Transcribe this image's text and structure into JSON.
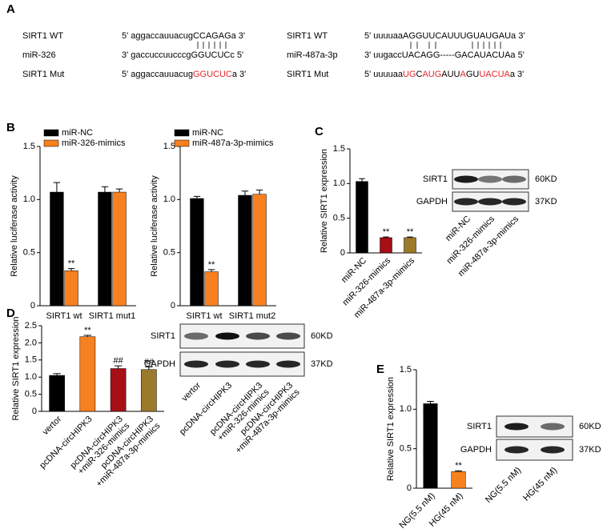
{
  "panels": [
    "A",
    "B",
    "C",
    "D",
    "E"
  ],
  "sequences": {
    "left": [
      {
        "label": "SIRT1 WT",
        "segments": [
          {
            "text": "5' aggaccauuacugCCAGAGa 3'"
          }
        ]
      },
      {
        "label": "miR-326",
        "segments": [
          {
            "text": "3' gaccuccuucccgGGUCUCc 5'"
          }
        ]
      },
      {
        "label": "SIRT1 Mut",
        "segments": [
          {
            "text": "5' aggaccauuacug"
          },
          {
            "text": "GGUCUC",
            "color": "#e8262a"
          },
          {
            "text": "a 3'"
          }
        ]
      }
    ],
    "right": [
      {
        "label": "SIRT1 WT",
        "segments": [
          {
            "text": "5' uuuuaaAGGUUCAUUUGUAUGAUa 3'"
          }
        ]
      },
      {
        "label": "miR-487a-3p",
        "segments": [
          {
            "text": "3' uugaccUACAGG-----GACAUACUAa 5'"
          }
        ]
      },
      {
        "label": "SIRT1 Mut",
        "segments": [
          {
            "text": "5' uuuuaa"
          },
          {
            "text": "UG",
            "color": "#e8262a"
          },
          {
            "text": "C"
          },
          {
            "text": "AUG",
            "color": "#e8262a"
          },
          {
            "text": "AUU"
          },
          {
            "text": "A",
            "color": "#e8262a"
          },
          {
            "text": "GU"
          },
          {
            "text": "UACUA",
            "color": "#e8262a"
          },
          {
            "text": "a 3'"
          }
        ]
      }
    ]
  },
  "chart_data": [
    {
      "type": "bar",
      "ylabel": "Relative luciferase activity",
      "categories": [
        "SIRT1 wt",
        "SIRT1 mut1"
      ],
      "series": [
        {
          "name": "miR-NC",
          "color": "#000000",
          "values": [
            1.07,
            1.07
          ],
          "errors": [
            0.09,
            0.05
          ],
          "significance": [
            null,
            null
          ]
        },
        {
          "name": "miR-326-mimics",
          "color": "#f7801f",
          "values": [
            0.33,
            1.07
          ],
          "errors": [
            0.02,
            0.03
          ],
          "significance": [
            "**",
            null
          ]
        }
      ],
      "ylim": [
        0,
        1.5
      ],
      "yticks": [
        0,
        0.5,
        {
          "value": 1.0,
          "label": "1.0"
        },
        1.5
      ]
    },
    {
      "type": "bar",
      "ylabel": "Relative luciferase activity",
      "categories": [
        "SIRT1 wt",
        "SIRT1 mut2"
      ],
      "series": [
        {
          "name": "miR-NC",
          "color": "#000000",
          "values": [
            1.01,
            1.04
          ],
          "errors": [
            0.02,
            0.04
          ],
          "significance": [
            null,
            null
          ]
        },
        {
          "name": "miR-487a-3p-mimics",
          "color": "#f7801f",
          "values": [
            0.32,
            1.05
          ],
          "errors": [
            0.02,
            0.04
          ],
          "significance": [
            "**",
            null
          ]
        }
      ],
      "ylim": [
        0,
        1.5
      ],
      "yticks": [
        0,
        0.5,
        {
          "value": 1.0,
          "label": "1.0"
        },
        1.5
      ]
    },
    {
      "type": "bar",
      "ylabel": "Relative SIRT1 expression",
      "categories": [
        [
          "miR-NC"
        ],
        [
          "miR-326-mimics"
        ],
        [
          "miR-487a-3p-mimics"
        ]
      ],
      "values": [
        1.03,
        0.22,
        0.22
      ],
      "errors": [
        0.04,
        0.01,
        0.01
      ],
      "significance": [
        null,
        "**",
        "**"
      ],
      "colors": [
        "#000000",
        "#a50f15",
        "#9c7a2c"
      ],
      "ylim": [
        0,
        1.5
      ],
      "yticks": [
        0,
        0.5,
        {
          "value": 1.0,
          "label": "1.0"
        },
        1.5
      ]
    },
    {
      "type": "bar",
      "ylabel": "Relative SIRT1 expression",
      "categories": [
        [
          "vertor"
        ],
        [
          "pcDNA-circHIPK3"
        ],
        [
          "pcDNA-circHIPK3",
          "+miR-326-mimics"
        ],
        [
          "pcDNA-circHIPK3",
          "+miR-487a-3p-mimics"
        ]
      ],
      "values": [
        1.05,
        2.18,
        1.25,
        1.22
      ],
      "errors": [
        0.05,
        0.04,
        0.08,
        0.08
      ],
      "significance": [
        null,
        "**",
        "##",
        "##"
      ],
      "colors": [
        "#000000",
        "#f7801f",
        "#a50f15",
        "#9c7a2c"
      ],
      "ylim": [
        0,
        2.5
      ],
      "yticks": [
        0,
        0.5,
        {
          "value": 1.0,
          "label": "1.0"
        },
        1.5,
        {
          "value": 2.0,
          "label": "2.0"
        },
        2.5
      ]
    },
    {
      "type": "bar",
      "ylabel": "Relative SIRT1 expression",
      "categories": [
        [
          "NG(5.5 nM)"
        ],
        [
          "HG(45 nM)"
        ]
      ],
      "values": [
        1.07,
        0.21
      ],
      "errors": [
        0.03,
        0.01
      ],
      "significance": [
        null,
        "**"
      ],
      "colors": [
        "#000000",
        "#f7801f"
      ],
      "ylim": [
        0,
        1.5
      ],
      "yticks": [
        0,
        0.5,
        {
          "value": 1.0,
          "label": "1.0"
        },
        1.5
      ]
    }
  ],
  "blots": [
    {
      "rows": [
        {
          "label": "SIRT1",
          "size": "60KD"
        },
        {
          "label": "GAPDH",
          "size": "37KD"
        }
      ],
      "lanes": [
        [
          "miR-NC"
        ],
        [
          "miR-326-mimics"
        ],
        [
          "miR-487a-3p-mimics"
        ]
      ]
    },
    {
      "rows": [
        {
          "label": "SIRT1",
          "size": "60KD"
        },
        {
          "label": "GAPDH",
          "size": "37KD"
        }
      ],
      "lanes": [
        [
          "vertor"
        ],
        [
          "pcDNA-circHIPK3"
        ],
        [
          "pcDNA-circHIPK3",
          "+miR-326-mimics"
        ],
        [
          "pcDNA-circHIPK3",
          "+miR-487a-3p-mimics"
        ]
      ]
    },
    {
      "rows": [
        {
          "label": "SIRT1",
          "size": "60KD"
        },
        {
          "label": "GAPDH",
          "size": "37KD"
        }
      ],
      "lanes": [
        [
          "NG(5.5 nM)"
        ],
        [
          "HG(45 nM)"
        ]
      ]
    }
  ]
}
